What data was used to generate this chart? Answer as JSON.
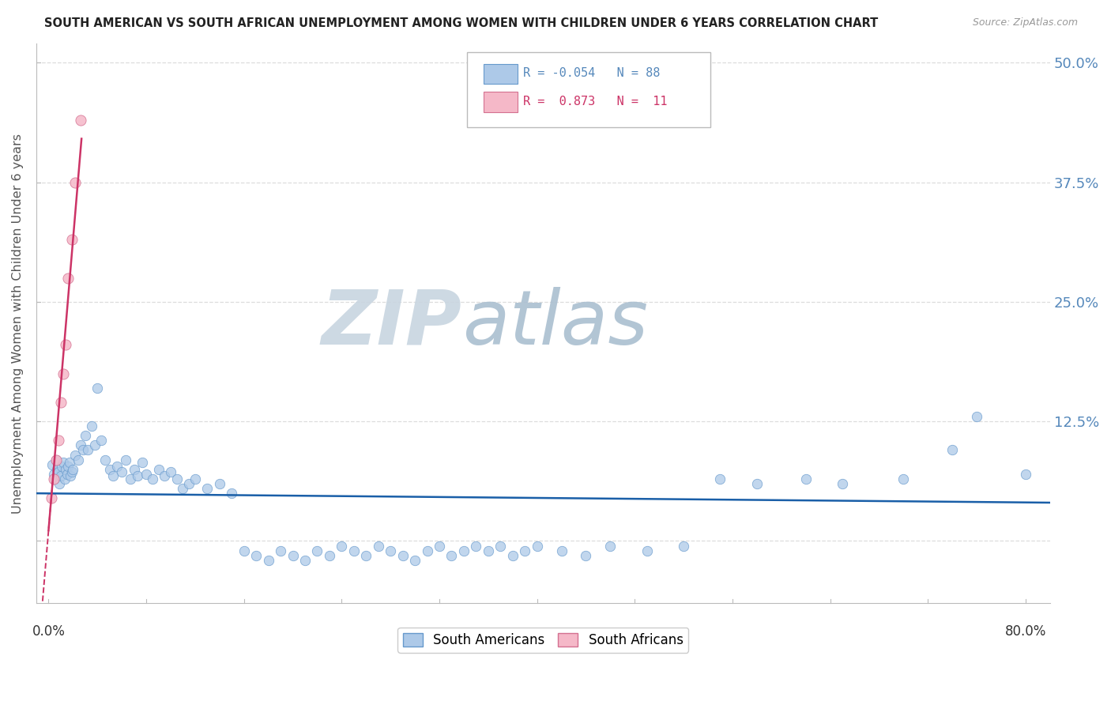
{
  "title": "SOUTH AMERICAN VS SOUTH AFRICAN UNEMPLOYMENT AMONG WOMEN WITH CHILDREN UNDER 6 YEARS CORRELATION CHART",
  "source": "Source: ZipAtlas.com",
  "ylabel": "Unemployment Among Women with Children Under 6 years",
  "xlim": [
    -0.01,
    0.82
  ],
  "ylim": [
    -0.065,
    0.52
  ],
  "yticks": [
    0.0,
    0.125,
    0.25,
    0.375,
    0.5
  ],
  "ytick_labels": [
    "",
    "12.5%",
    "25.0%",
    "37.5%",
    "50.0%"
  ],
  "south_american_color": "#adc9e8",
  "south_american_edge": "#6699cc",
  "south_african_color": "#f5b8c8",
  "south_african_edge": "#d47090",
  "trend_blue": "#1a5fa8",
  "trend_pink": "#cc3366",
  "watermark_zip": "#c8d5e0",
  "watermark_atlas": "#aabfd0",
  "grid_color": "#dddddd",
  "label_color_blue": "#5588bb",
  "axis_color": "#bbbbbb",
  "title_color": "#222222",
  "source_color": "#999999",
  "pink_x": [
    0.002,
    0.004,
    0.006,
    0.008,
    0.01,
    0.012,
    0.014,
    0.016,
    0.019,
    0.022,
    0.026
  ],
  "pink_y": [
    0.045,
    0.065,
    0.085,
    0.105,
    0.145,
    0.175,
    0.205,
    0.275,
    0.315,
    0.375,
    0.44
  ],
  "blue_x": [
    0.003,
    0.004,
    0.005,
    0.006,
    0.007,
    0.008,
    0.009,
    0.01,
    0.011,
    0.012,
    0.013,
    0.014,
    0.015,
    0.016,
    0.017,
    0.018,
    0.019,
    0.02,
    0.022,
    0.024,
    0.026,
    0.028,
    0.03,
    0.032,
    0.035,
    0.038,
    0.04,
    0.043,
    0.046,
    0.05,
    0.053,
    0.056,
    0.06,
    0.063,
    0.067,
    0.07,
    0.073,
    0.077,
    0.08,
    0.085,
    0.09,
    0.095,
    0.1,
    0.105,
    0.11,
    0.115,
    0.12,
    0.13,
    0.14,
    0.15,
    0.16,
    0.17,
    0.18,
    0.19,
    0.2,
    0.21,
    0.22,
    0.23,
    0.24,
    0.25,
    0.26,
    0.27,
    0.28,
    0.29,
    0.3,
    0.31,
    0.32,
    0.33,
    0.34,
    0.35,
    0.36,
    0.37,
    0.38,
    0.39,
    0.4,
    0.42,
    0.44,
    0.46,
    0.49,
    0.52,
    0.55,
    0.58,
    0.62,
    0.65,
    0.7,
    0.74,
    0.76,
    0.8
  ],
  "blue_y": [
    0.08,
    0.07,
    0.065,
    0.085,
    0.075,
    0.072,
    0.06,
    0.068,
    0.078,
    0.082,
    0.065,
    0.075,
    0.07,
    0.078,
    0.082,
    0.068,
    0.072,
    0.075,
    0.09,
    0.085,
    0.1,
    0.095,
    0.11,
    0.095,
    0.12,
    0.1,
    0.16,
    0.105,
    0.085,
    0.075,
    0.068,
    0.078,
    0.072,
    0.085,
    0.065,
    0.075,
    0.068,
    0.082,
    0.07,
    0.065,
    0.075,
    0.068,
    0.072,
    0.065,
    0.055,
    0.06,
    0.065,
    0.055,
    0.06,
    0.05,
    -0.01,
    -0.015,
    -0.02,
    -0.01,
    -0.015,
    -0.02,
    -0.01,
    -0.015,
    -0.005,
    -0.01,
    -0.015,
    -0.005,
    -0.01,
    -0.015,
    -0.02,
    -0.01,
    -0.005,
    -0.015,
    -0.01,
    -0.005,
    -0.01,
    -0.005,
    -0.015,
    -0.01,
    -0.005,
    -0.01,
    -0.015,
    -0.005,
    -0.01,
    -0.005,
    0.065,
    0.06,
    0.065,
    0.06,
    0.065,
    0.095,
    0.13,
    0.07
  ]
}
